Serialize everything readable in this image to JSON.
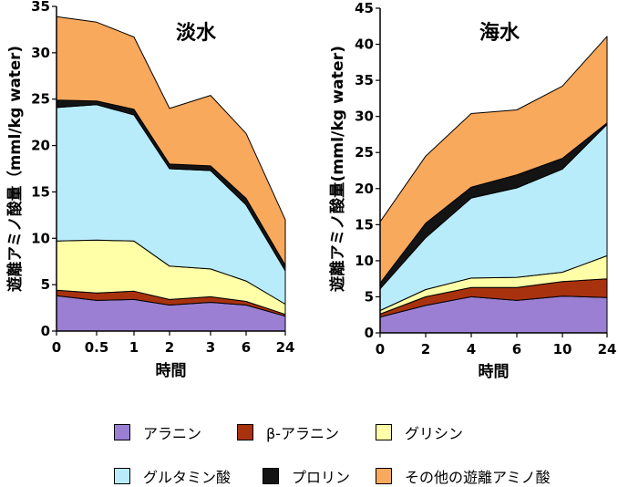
{
  "chart_data": [
    {
      "type": "area",
      "stacked": true,
      "title": "淡水",
      "xlabel": "時間",
      "ylabel": "遊離アミノ酸量（mml/kg water)",
      "categories": [
        "0",
        "0.5",
        "1",
        "2",
        "3",
        "6",
        "24"
      ],
      "ylim": [
        0,
        35
      ],
      "yticks": [
        0,
        5,
        10,
        15,
        20,
        25,
        30,
        35
      ],
      "series": [
        {
          "name": "アラニン",
          "values": [
            3.8,
            3.3,
            3.4,
            2.8,
            3.1,
            2.8,
            1.6
          ]
        },
        {
          "name": "β-アラニン",
          "values": [
            0.6,
            0.8,
            0.9,
            0.6,
            0.6,
            0.4,
            0.2
          ]
        },
        {
          "name": "グリシン",
          "values": [
            5.3,
            5.7,
            5.4,
            3.6,
            3.0,
            2.2,
            1.1
          ]
        },
        {
          "name": "グルタミン酸",
          "values": [
            14.4,
            14.6,
            13.6,
            10.5,
            10.6,
            8.2,
            3.6
          ]
        },
        {
          "name": "プロリン",
          "values": [
            0.8,
            0.4,
            0.6,
            0.5,
            0.5,
            0.7,
            0.6
          ]
        },
        {
          "name": "その他の遊離アミノ酸",
          "values": [
            9.0,
            8.5,
            7.8,
            6.0,
            7.6,
            7.0,
            4.9
          ]
        }
      ]
    },
    {
      "type": "area",
      "stacked": true,
      "title": "海水",
      "xlabel": "時間",
      "ylabel": "遊離アミノ酸量(mml/kg water)",
      "categories": [
        "0",
        "2",
        "4",
        "6",
        "10",
        "24"
      ],
      "ylim": [
        0,
        45
      ],
      "yticks": [
        0,
        5,
        10,
        15,
        20,
        25,
        30,
        35,
        40,
        45
      ],
      "series": [
        {
          "name": "アラニン",
          "values": [
            2.2,
            3.8,
            5.0,
            4.5,
            5.1,
            4.9
          ]
        },
        {
          "name": "β-アラニン",
          "values": [
            0.4,
            1.2,
            1.3,
            1.8,
            2.0,
            2.6
          ]
        },
        {
          "name": "グリシン",
          "values": [
            0.5,
            1.0,
            1.3,
            1.4,
            1.3,
            3.2
          ]
        },
        {
          "name": "グルタミン酸",
          "values": [
            3.0,
            7.2,
            11.1,
            12.4,
            14.3,
            18.2
          ]
        },
        {
          "name": "プロリン",
          "values": [
            0.8,
            2.0,
            1.5,
            1.8,
            1.5,
            0.2
          ]
        },
        {
          "name": "その他の遊離アミノ酸",
          "values": [
            8.5,
            9.3,
            10.2,
            9.0,
            10.0,
            12.0
          ]
        }
      ]
    }
  ],
  "legend": [
    {
      "label": "アラニン",
      "color": "#9a7fd3"
    },
    {
      "label": "β-アラニン",
      "color": "#a9320e"
    },
    {
      "label": "グリシン",
      "color": "#ffffa8"
    },
    {
      "label": "グルタミン酸",
      "color": "#b8ecfb"
    },
    {
      "label": "プロリン",
      "color": "#141414"
    },
    {
      "label": "その他の遊離アミノ酸",
      "color": "#f9a95c"
    }
  ]
}
